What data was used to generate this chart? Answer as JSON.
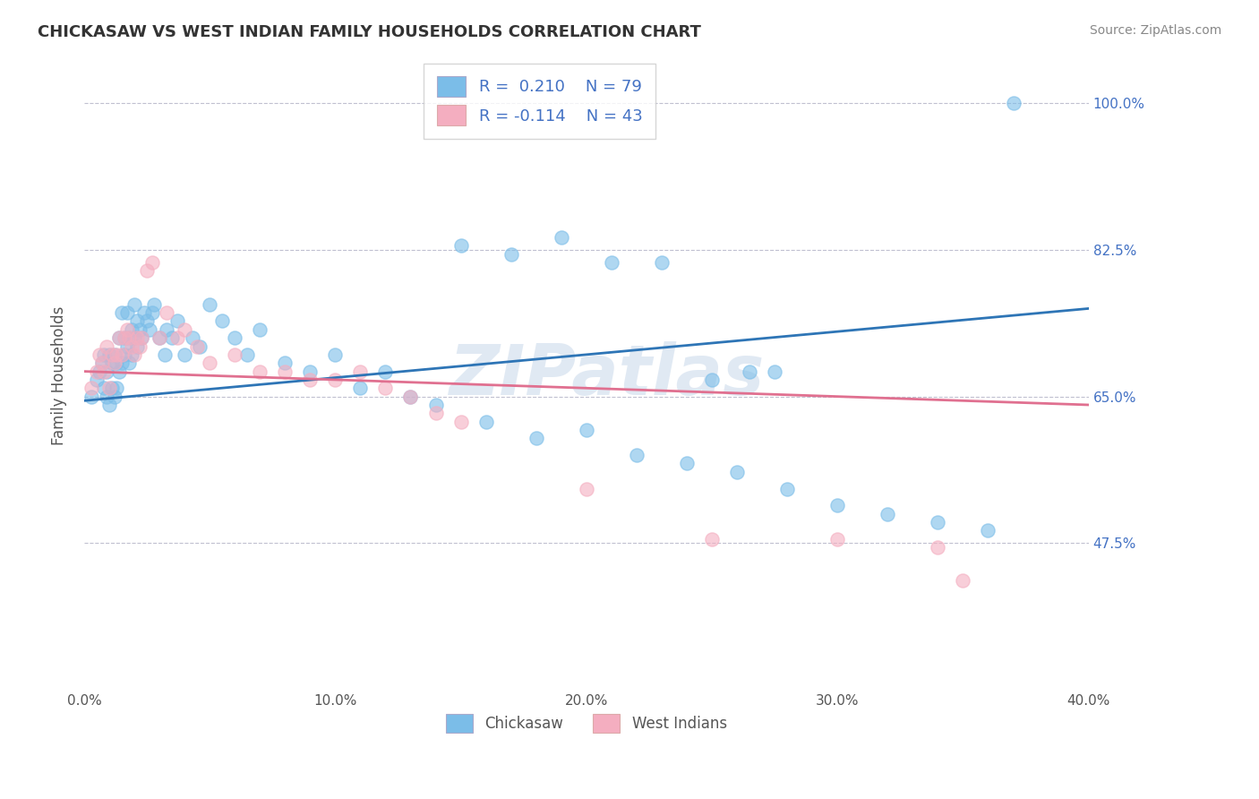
{
  "title": "CHICKASAW VS WEST INDIAN FAMILY HOUSEHOLDS CORRELATION CHART",
  "source": "Source: ZipAtlas.com",
  "ylabel": "Family Households",
  "xlim": [
    0.0,
    0.4
  ],
  "ylim": [
    0.3,
    1.05
  ],
  "yticks": [
    0.475,
    0.65,
    0.825,
    1.0
  ],
  "ytick_labels": [
    "47.5%",
    "65.0%",
    "82.5%",
    "100.0%"
  ],
  "xticks": [
    0.0,
    0.05,
    0.1,
    0.15,
    0.2,
    0.25,
    0.3,
    0.35,
    0.4
  ],
  "xtick_labels": [
    "0.0%",
    "",
    "10.0%",
    "",
    "20.0%",
    "",
    "30.0%",
    "",
    "40.0%"
  ],
  "blue_R": 0.21,
  "blue_N": 79,
  "pink_R": -0.114,
  "pink_N": 43,
  "blue_color": "#7bbde8",
  "pink_color": "#f4aec0",
  "blue_line_color": "#2e75b6",
  "pink_line_color": "#e07090",
  "legend_label_blue": "Chickasaw",
  "legend_label_pink": "West Indians",
  "blue_line_x0": 0.0,
  "blue_line_y0": 0.645,
  "blue_line_x1": 0.4,
  "blue_line_y1": 0.755,
  "pink_line_x0": 0.0,
  "pink_line_y0": 0.68,
  "pink_line_x1": 0.4,
  "pink_line_y1": 0.64,
  "blue_x": [
    0.003,
    0.005,
    0.006,
    0.007,
    0.008,
    0.008,
    0.009,
    0.009,
    0.01,
    0.01,
    0.011,
    0.011,
    0.012,
    0.012,
    0.013,
    0.013,
    0.014,
    0.014,
    0.015,
    0.015,
    0.016,
    0.016,
    0.017,
    0.017,
    0.018,
    0.018,
    0.019,
    0.019,
    0.02,
    0.02,
    0.021,
    0.021,
    0.022,
    0.023,
    0.024,
    0.025,
    0.026,
    0.027,
    0.028,
    0.03,
    0.032,
    0.033,
    0.035,
    0.037,
    0.04,
    0.043,
    0.046,
    0.05,
    0.055,
    0.06,
    0.065,
    0.07,
    0.08,
    0.09,
    0.1,
    0.11,
    0.12,
    0.13,
    0.14,
    0.16,
    0.18,
    0.2,
    0.22,
    0.24,
    0.26,
    0.28,
    0.3,
    0.32,
    0.34,
    0.36,
    0.15,
    0.17,
    0.19,
    0.21,
    0.23,
    0.25,
    0.265,
    0.275,
    0.37
  ],
  "blue_y": [
    0.65,
    0.67,
    0.68,
    0.69,
    0.66,
    0.7,
    0.65,
    0.68,
    0.64,
    0.7,
    0.66,
    0.69,
    0.65,
    0.7,
    0.66,
    0.69,
    0.72,
    0.68,
    0.75,
    0.69,
    0.72,
    0.7,
    0.75,
    0.71,
    0.72,
    0.69,
    0.73,
    0.7,
    0.76,
    0.72,
    0.74,
    0.71,
    0.73,
    0.72,
    0.75,
    0.74,
    0.73,
    0.75,
    0.76,
    0.72,
    0.7,
    0.73,
    0.72,
    0.74,
    0.7,
    0.72,
    0.71,
    0.76,
    0.74,
    0.72,
    0.7,
    0.73,
    0.69,
    0.68,
    0.7,
    0.66,
    0.68,
    0.65,
    0.64,
    0.62,
    0.6,
    0.61,
    0.58,
    0.57,
    0.56,
    0.54,
    0.52,
    0.51,
    0.5,
    0.49,
    0.83,
    0.82,
    0.84,
    0.81,
    0.81,
    0.67,
    0.68,
    0.68,
    1.0
  ],
  "pink_x": [
    0.003,
    0.005,
    0.006,
    0.007,
    0.008,
    0.009,
    0.01,
    0.011,
    0.012,
    0.013,
    0.014,
    0.015,
    0.016,
    0.017,
    0.018,
    0.019,
    0.02,
    0.021,
    0.022,
    0.023,
    0.025,
    0.027,
    0.03,
    0.033,
    0.037,
    0.04,
    0.045,
    0.05,
    0.06,
    0.07,
    0.08,
    0.09,
    0.1,
    0.11,
    0.12,
    0.13,
    0.14,
    0.15,
    0.2,
    0.25,
    0.3,
    0.34,
    0.35
  ],
  "pink_y": [
    0.66,
    0.68,
    0.7,
    0.69,
    0.68,
    0.71,
    0.66,
    0.7,
    0.69,
    0.7,
    0.72,
    0.7,
    0.72,
    0.73,
    0.72,
    0.71,
    0.7,
    0.72,
    0.71,
    0.72,
    0.8,
    0.81,
    0.72,
    0.75,
    0.72,
    0.73,
    0.71,
    0.69,
    0.7,
    0.68,
    0.68,
    0.67,
    0.67,
    0.68,
    0.66,
    0.65,
    0.63,
    0.62,
    0.54,
    0.48,
    0.48,
    0.47,
    0.43
  ]
}
